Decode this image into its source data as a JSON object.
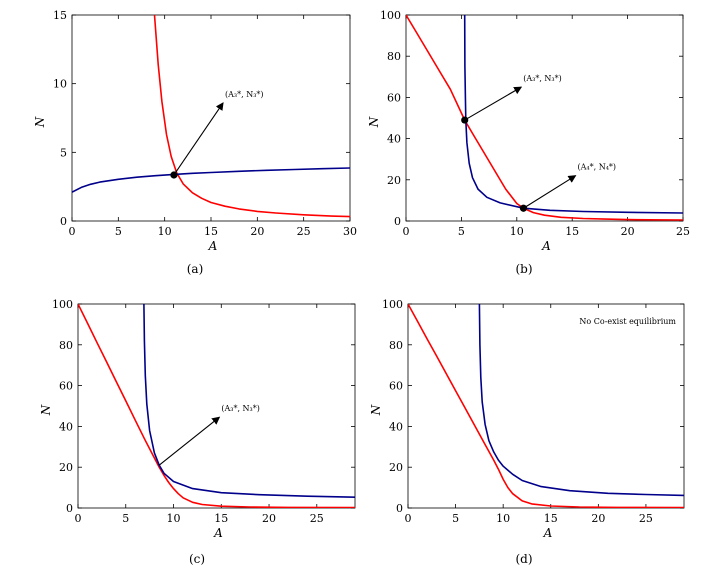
{
  "chart_data": [
    {
      "type": "line",
      "caption": "(a)",
      "xlabel": "A",
      "ylabel": "N",
      "xlim": [
        0,
        30
      ],
      "ylim": [
        0,
        15
      ],
      "xticks": [
        0,
        5,
        10,
        15,
        20,
        25,
        30
      ],
      "yticks": [
        0,
        5,
        10,
        15
      ],
      "series": [
        {
          "color": "#ff0000",
          "x": [
            8.9,
            9.3,
            9.7,
            10.2,
            10.7,
            11.3,
            12,
            13,
            14,
            15,
            16.5,
            18,
            20,
            22,
            25,
            28,
            30
          ],
          "y": [
            15,
            11.4,
            8.7,
            6.3,
            4.7,
            3.5,
            2.7,
            2.05,
            1.65,
            1.35,
            1.08,
            0.88,
            0.7,
            0.58,
            0.45,
            0.36,
            0.32
          ]
        },
        {
          "color": "#00008b",
          "x": [
            0,
            1,
            2,
            3,
            5,
            7,
            9,
            11,
            13,
            15,
            18,
            21,
            24,
            27,
            30
          ],
          "y": [
            2.1,
            2.45,
            2.67,
            2.83,
            3.04,
            3.19,
            3.3,
            3.39,
            3.47,
            3.53,
            3.62,
            3.69,
            3.75,
            3.81,
            3.86
          ]
        }
      ],
      "points": [
        {
          "x": 11,
          "y": 3.35
        }
      ],
      "annotations": [
        {
          "text": "(A₃*, N₃*)",
          "from": [
            11,
            3.35
          ],
          "to": [
            16.3,
            8.6
          ]
        }
      ]
    },
    {
      "type": "line",
      "caption": "(b)",
      "xlabel": "A",
      "ylabel": "N",
      "xlim": [
        0,
        25
      ],
      "ylim": [
        0,
        100
      ],
      "xticks": [
        0,
        5,
        10,
        15,
        20,
        25
      ],
      "yticks": [
        0,
        20,
        40,
        60,
        80,
        100
      ],
      "series": [
        {
          "color": "#ff0000",
          "x": [
            0,
            1,
            2,
            3,
            4,
            5.3,
            6,
            7,
            8,
            9,
            10,
            10.6,
            11.5,
            12.5,
            14,
            16,
            18,
            20,
            22,
            25
          ],
          "y": [
            100,
            91,
            82,
            73,
            64,
            49,
            42.5,
            33.5,
            24.5,
            15.5,
            8.5,
            6.2,
            4.1,
            2.8,
            1.8,
            1.2,
            0.9,
            0.7,
            0.6,
            0.5
          ]
        },
        {
          "color": "#00008b",
          "x": [
            5.3,
            5.32,
            5.36,
            5.4,
            5.5,
            5.7,
            6,
            6.5,
            7.3,
            8.5,
            10.6,
            13,
            16,
            20,
            25
          ],
          "y": [
            100,
            75,
            60,
            49,
            38,
            28,
            21,
            15.5,
            11.5,
            8.8,
            6.2,
            5.2,
            4.6,
            4.2,
            3.9
          ]
        }
      ],
      "points": [
        {
          "x": 5.3,
          "y": 49
        },
        {
          "x": 10.6,
          "y": 6.2
        }
      ],
      "annotations": [
        {
          "text": "(A₃*, N₃*)",
          "from": [
            5.3,
            49
          ],
          "to": [
            10.4,
            65
          ]
        },
        {
          "text": "(A₄*, N₄*)",
          "from": [
            10.6,
            6.2
          ],
          "to": [
            15.3,
            22
          ]
        }
      ]
    },
    {
      "type": "line",
      "caption": "(c)",
      "xlabel": "A",
      "ylabel": "N",
      "xlim": [
        0,
        29
      ],
      "ylim": [
        0,
        100
      ],
      "xticks": [
        0,
        5,
        10,
        15,
        20,
        25
      ],
      "yticks": [
        0,
        20,
        40,
        60,
        80,
        100
      ],
      "series": [
        {
          "color": "#ff0000",
          "x": [
            0,
            1,
            2,
            3,
            4,
            5,
            6,
            7,
            8,
            8.5,
            9,
            9.5,
            10,
            10.5,
            11,
            12,
            13,
            15,
            18,
            22,
            29
          ],
          "y": [
            100,
            90.5,
            81,
            71.5,
            62,
            52.5,
            43,
            33.5,
            24.5,
            20,
            16,
            12.5,
            9.5,
            7,
            5,
            2.8,
            1.7,
            0.9,
            0.5,
            0.3,
            0.2
          ]
        },
        {
          "color": "#00008b",
          "x": [
            6.9,
            6.95,
            7.05,
            7.2,
            7.5,
            8,
            8.5,
            9,
            10,
            12,
            15,
            19,
            24,
            29
          ],
          "y": [
            100,
            82,
            65,
            51,
            38,
            27,
            21,
            17,
            13,
            9.5,
            7.5,
            6.5,
            5.8,
            5.3
          ]
        }
      ],
      "points": [],
      "annotations": [
        {
          "text": "(A₃*, N₃*)",
          "from": [
            8.5,
            21
          ],
          "to": [
            14.8,
            44.5
          ]
        }
      ]
    },
    {
      "type": "line",
      "caption": "(d)",
      "xlabel": "A",
      "ylabel": "N",
      "xlim": [
        0,
        29
      ],
      "ylim": [
        0,
        100
      ],
      "xticks": [
        0,
        5,
        10,
        15,
        20,
        25
      ],
      "yticks": [
        0,
        20,
        40,
        60,
        80,
        100
      ],
      "text_note": "No Co-exist equilibrium",
      "series": [
        {
          "color": "#ff0000",
          "x": [
            0,
            1,
            2,
            3,
            4,
            5,
            6,
            7,
            8,
            9,
            9.5,
            10,
            10.5,
            11,
            12,
            13,
            15,
            18,
            22,
            29
          ],
          "y": [
            100,
            91.5,
            83,
            74.5,
            66,
            57.5,
            49,
            40.5,
            32,
            23.5,
            19,
            14,
            10,
            7,
            3.5,
            2,
            1,
            0.5,
            0.3,
            0.2
          ]
        },
        {
          "color": "#00008b",
          "x": [
            7.5,
            7.55,
            7.65,
            7.8,
            8.1,
            8.5,
            9,
            9.5,
            10,
            11,
            12,
            14,
            17,
            21,
            25,
            29
          ],
          "y": [
            100,
            80,
            64,
            52,
            41,
            33,
            27.5,
            23.5,
            20.5,
            16.5,
            13.5,
            10.5,
            8.5,
            7.2,
            6.6,
            6.2
          ]
        }
      ],
      "points": [],
      "annotations": []
    }
  ]
}
